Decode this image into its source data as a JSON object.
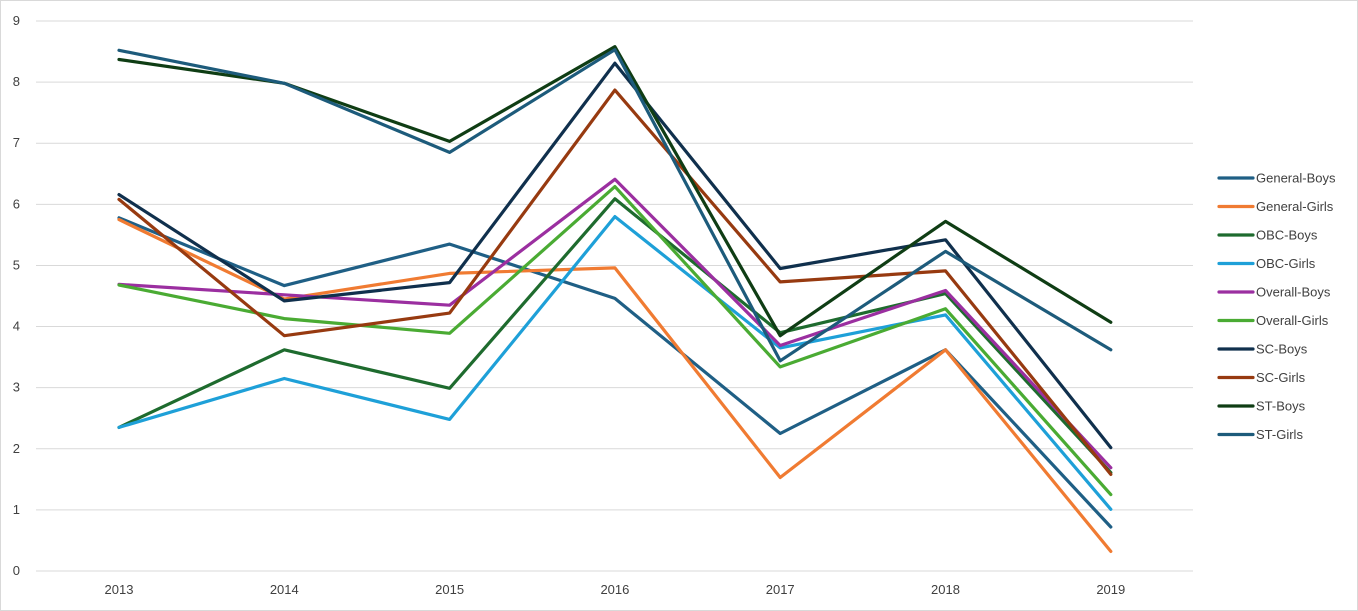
{
  "chart_data": {
    "type": "line",
    "title": "",
    "xlabel": "",
    "ylabel": "",
    "categories": [
      "2013",
      "2014",
      "2015",
      "2016",
      "2017",
      "2018",
      "2019"
    ],
    "ylim": [
      0,
      9
    ],
    "yticks": [
      "0",
      "1",
      "2",
      "3",
      "4",
      "5",
      "6",
      "7",
      "8",
      "9"
    ],
    "grid": true,
    "legend_position": "right",
    "series": [
      {
        "name": "General-Boys",
        "color": "#1f5f85",
        "values": [
          5.78,
          4.67,
          5.35,
          4.46,
          2.25,
          3.62,
          0.72
        ]
      },
      {
        "name": "General-Girls",
        "color": "#f07b32",
        "values": [
          5.75,
          4.45,
          4.87,
          4.96,
          1.53,
          3.62,
          0.32
        ]
      },
      {
        "name": "OBC-Boys",
        "color": "#1e6b2e",
        "values": [
          2.35,
          3.62,
          2.99,
          6.09,
          3.9,
          4.54,
          1.61
        ]
      },
      {
        "name": "OBC-Girls",
        "color": "#1ea0d8",
        "values": [
          2.35,
          3.15,
          2.48,
          5.8,
          3.65,
          4.19,
          1.01
        ]
      },
      {
        "name": "Overall-Boys",
        "color": "#9b2fa0",
        "values": [
          4.69,
          4.52,
          4.35,
          6.41,
          3.69,
          4.59,
          1.69
        ]
      },
      {
        "name": "Overall-Girls",
        "color": "#4aab33",
        "values": [
          4.68,
          4.13,
          3.89,
          6.29,
          3.34,
          4.29,
          1.25
        ]
      },
      {
        "name": "SC-Boys",
        "color": "#10304d",
        "values": [
          6.16,
          4.42,
          4.72,
          8.31,
          4.95,
          5.42,
          2.02
        ]
      },
      {
        "name": "SC-Girls",
        "color": "#973a10",
        "values": [
          6.08,
          3.85,
          4.22,
          7.87,
          4.73,
          4.91,
          1.58
        ]
      },
      {
        "name": "ST-Boys",
        "color": "#0f3d14",
        "values": [
          8.37,
          7.98,
          7.03,
          8.58,
          3.85,
          5.72,
          4.07
        ]
      },
      {
        "name": "ST-Girls",
        "color": "#1d5b7b",
        "values": [
          8.52,
          7.98,
          6.85,
          8.53,
          3.44,
          5.23,
          3.62
        ]
      }
    ]
  }
}
